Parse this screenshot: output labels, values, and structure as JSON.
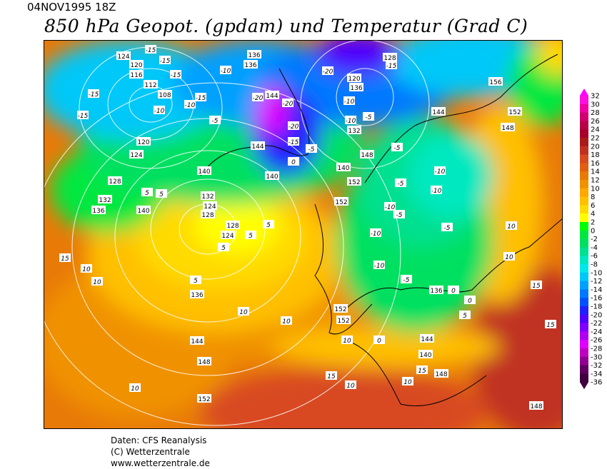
{
  "header": {
    "date": "04NOV1995 18Z",
    "title": "850 hPa Geopot. (gpdam) und  Temperatur (Grad C)"
  },
  "colorbar": {
    "labels": [
      "32",
      "30",
      "28",
      "26",
      "24",
      "22",
      "20",
      "18",
      "16",
      "14",
      "12",
      "10",
      "8",
      "6",
      "4",
      "2",
      "0",
      "-2",
      "-4",
      "-6",
      "-8",
      "-10",
      "-12",
      "-14",
      "-16",
      "-18",
      "-20",
      "-22",
      "-24",
      "-26",
      "-28",
      "-30",
      "-32",
      "-34",
      "-36"
    ],
    "colors": [
      "#ff00ff",
      "#ff10e0",
      "#f000a0",
      "#d00070",
      "#b80048",
      "#a80028",
      "#aa1a1a",
      "#c03020",
      "#d84a20",
      "#e06010",
      "#e87a08",
      "#f09200",
      "#ffa800",
      "#ffc000",
      "#ffda00",
      "#ffff00",
      "#00ff00",
      "#00e840",
      "#00e060",
      "#00e090",
      "#00e8c0",
      "#00e8ec",
      "#00c8f8",
      "#00a0ff",
      "#0078ff",
      "#0050ff",
      "#2020ff",
      "#5000ff",
      "#8000ff",
      "#b000f0",
      "#e000ff",
      "#c000c0",
      "#900090",
      "#600060",
      "#400040"
    ]
  },
  "map": {
    "geopotential_labels": [
      "124",
      "120",
      "116",
      "112",
      "108",
      "136",
      "136",
      "128",
      "144",
      "144",
      "140",
      "128",
      "124",
      "120",
      "136",
      "132",
      "144",
      "156",
      "152",
      "148",
      "120",
      "124",
      "128",
      "132",
      "136",
      "140",
      "140",
      "132",
      "128",
      "124",
      "136",
      "144",
      "148",
      "152",
      "156",
      "148",
      "140",
      "152",
      "136",
      "144",
      "140",
      "148",
      "152",
      "152",
      "152",
      "148"
    ],
    "temperature_labels": [
      "-15",
      "-15",
      "-15",
      "-15",
      "-15",
      "-15",
      "-10",
      "-10",
      "-10",
      "-5",
      "-20",
      "-20",
      "-20",
      "-20",
      "-15",
      "-5",
      "-10",
      "-15",
      "-5",
      "-10",
      "-5",
      "-5",
      "-10",
      "-10",
      "-10",
      "-10",
      "-5",
      "-5",
      "-10",
      "0",
      "0",
      "5",
      "5",
      "5",
      "5",
      "5",
      "5",
      "10",
      "10",
      "10",
      "10",
      "15",
      "10",
      "10",
      "10",
      "15",
      "10",
      "15",
      "15",
      "15",
      "10",
      "10",
      "5",
      "0",
      "-5",
      "0"
    ]
  },
  "footer": {
    "source": "Daten: CFS Reanalysis",
    "copyright": "(C) Wetterzentrale",
    "url": "www.wetterzentrale.de"
  }
}
